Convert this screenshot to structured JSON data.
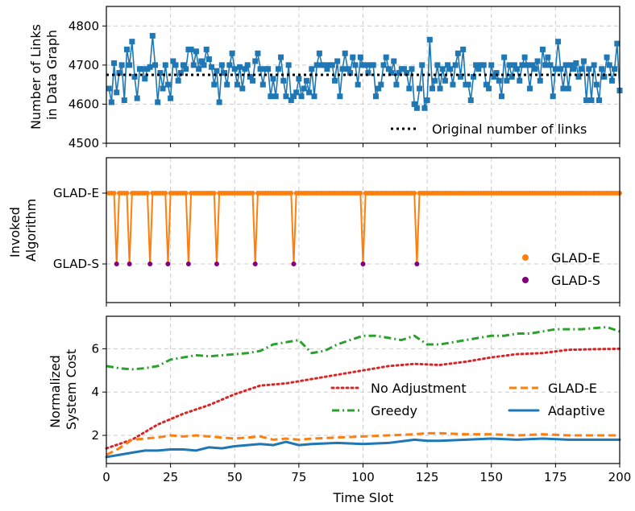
{
  "chart_data": [
    {
      "type": "line",
      "ylabel": "Number of Links\nin Data Graph",
      "xlim": [
        0,
        200
      ],
      "ylim": [
        4500,
        4850
      ],
      "yticks": [
        4500,
        4600,
        4700,
        4800
      ],
      "colors": {
        "series": "#1f77b4",
        "reference": "#000000"
      },
      "reference_line": {
        "label": "Original number of links",
        "value": 4675
      },
      "series": [
        {
          "name": "Number of links in data graph",
          "x": [
            1,
            2,
            3,
            4,
            5,
            6,
            7,
            8,
            9,
            10,
            11,
            12,
            13,
            14,
            15,
            16,
            17,
            18,
            19,
            20,
            21,
            22,
            23,
            24,
            25,
            26,
            27,
            28,
            29,
            30,
            31,
            32,
            33,
            34,
            35,
            36,
            37,
            38,
            39,
            40,
            41,
            42,
            43,
            44,
            45,
            46,
            47,
            48,
            49,
            50,
            51,
            52,
            53,
            54,
            55,
            56,
            57,
            58,
            59,
            60,
            61,
            62,
            63,
            64,
            65,
            66,
            67,
            68,
            69,
            70,
            71,
            72,
            73,
            74,
            75,
            76,
            77,
            78,
            79,
            80,
            81,
            82,
            83,
            84,
            85,
            86,
            87,
            88,
            89,
            90,
            91,
            92,
            93,
            94,
            95,
            96,
            97,
            98,
            99,
            100,
            101,
            102,
            103,
            104,
            105,
            106,
            107,
            108,
            109,
            110,
            111,
            112,
            113,
            114,
            115,
            116,
            117,
            118,
            119,
            120,
            121,
            122,
            123,
            124,
            125,
            126,
            127,
            128,
            129,
            130,
            131,
            132,
            133,
            134,
            135,
            136,
            137,
            138,
            139,
            140,
            141,
            142,
            143,
            144,
            145,
            146,
            147,
            148,
            149,
            150,
            151,
            152,
            153,
            154,
            155,
            156,
            157,
            158,
            159,
            160,
            161,
            162,
            163,
            164,
            165,
            166,
            167,
            168,
            169,
            170,
            171,
            172,
            173,
            174,
            175,
            176,
            177,
            178,
            179,
            180,
            181,
            182,
            183,
            184,
            185,
            186,
            187,
            188,
            189,
            190,
            191,
            192,
            193,
            194,
            195,
            196,
            197,
            198,
            199,
            200
          ],
          "y": [
            4640,
            4605,
            4705,
            4630,
            4680,
            4700,
            4610,
            4740,
            4700,
            4760,
            4670,
            4615,
            4690,
            4690,
            4665,
            4690,
            4695,
            4775,
            4700,
            4605,
            4680,
            4640,
            4700,
            4650,
            4615,
            4710,
            4700,
            4660,
            4680,
            4700,
            4690,
            4740,
            4740,
            4700,
            4735,
            4690,
            4710,
            4700,
            4740,
            4715,
            4695,
            4650,
            4685,
            4605,
            4700,
            4680,
            4650,
            4700,
            4730,
            4690,
            4650,
            4695,
            4640,
            4690,
            4700,
            4670,
            4660,
            4710,
            4730,
            4690,
            4650,
            4690,
            4690,
            4620,
            4665,
            4620,
            4690,
            4720,
            4660,
            4620,
            4700,
            4610,
            4620,
            4630,
            4665,
            4620,
            4640,
            4660,
            4630,
            4690,
            4620,
            4700,
            4730,
            4700,
            4700,
            4690,
            4700,
            4700,
            4660,
            4710,
            4620,
            4690,
            4730,
            4690,
            4680,
            4720,
            4700,
            4650,
            4720,
            4700,
            4700,
            4680,
            4700,
            4700,
            4620,
            4640,
            4650,
            4700,
            4720,
            4690,
            4680,
            4710,
            4650,
            4680,
            4690,
            4690,
            4680,
            4640,
            4690,
            4600,
            4590,
            4640,
            4700,
            4590,
            4610,
            4765,
            4640,
            4660,
            4700,
            4640,
            4690,
            4660,
            4700,
            4690,
            4650,
            4700,
            4730,
            4670,
            4740,
            4650,
            4650,
            4610,
            4670,
            4700,
            4690,
            4700,
            4700,
            4650,
            4640,
            4700,
            4670,
            4680,
            4660,
            4620,
            4720,
            4660,
            4700,
            4670,
            4700,
            4690,
            4660,
            4700,
            4720,
            4700,
            4640,
            4700,
            4690,
            4710,
            4660,
            4740,
            4700,
            4720,
            4700,
            4620,
            4690,
            4760,
            4690,
            4640,
            4700,
            4640,
            4700,
            4690,
            4705,
            4670,
            4690,
            4710,
            4610,
            4690,
            4610,
            4700,
            4650,
            4610,
            4690,
            4670,
            4720,
            4700,
            4660,
            4690,
            4755,
            4635
          ]
        }
      ]
    },
    {
      "type": "scatter",
      "ylabel": "Invoked\nAlgorithm",
      "xlim": [
        0,
        200
      ],
      "categories": [
        "GLAD-E",
        "GLAD-S"
      ],
      "colors": {
        "line": "#ff7f0e",
        "GLAD-E": "#ff7f0e",
        "GLAD-S": "#800080"
      },
      "legend": [
        {
          "name": "GLAD-E",
          "color": "#ff7f0e"
        },
        {
          "name": "GLAD-S",
          "color": "#800080"
        }
      ],
      "glad_s_slots": [
        4,
        9,
        17,
        24,
        32,
        43,
        58,
        73,
        100,
        121
      ],
      "default_category": "GLAD-E"
    },
    {
      "type": "line",
      "xlabel": "Time Slot",
      "ylabel": "Normalized\nSystem Cost",
      "xlim": [
        0,
        200
      ],
      "ylim": [
        0.7,
        7.5
      ],
      "xticks": [
        0,
        25,
        50,
        75,
        100,
        125,
        150,
        175,
        200
      ],
      "yticks": [
        2,
        4,
        6
      ],
      "series": [
        {
          "name": "No Adjustment",
          "color": "#d62728",
          "style": "dotted",
          "x": [
            0,
            10,
            20,
            30,
            40,
            50,
            60,
            70,
            80,
            90,
            100,
            110,
            120,
            130,
            140,
            150,
            160,
            170,
            180,
            190,
            200
          ],
          "y": [
            1.4,
            1.8,
            2.5,
            3.0,
            3.4,
            3.9,
            4.3,
            4.4,
            4.6,
            4.8,
            5.0,
            5.2,
            5.3,
            5.25,
            5.4,
            5.6,
            5.75,
            5.8,
            5.95,
            5.98,
            6.0
          ]
        },
        {
          "name": "GLAD-E",
          "color": "#ff7f0e",
          "style": "dashed",
          "x": [
            0,
            5,
            10,
            15,
            20,
            25,
            30,
            35,
            40,
            45,
            50,
            55,
            60,
            65,
            70,
            75,
            80,
            90,
            100,
            110,
            120,
            125,
            130,
            140,
            150,
            160,
            170,
            180,
            190,
            200
          ],
          "y": [
            1.1,
            1.4,
            1.8,
            1.85,
            1.9,
            2.0,
            1.95,
            2.0,
            1.95,
            1.9,
            1.85,
            1.9,
            1.95,
            1.8,
            1.85,
            1.8,
            1.85,
            1.9,
            1.95,
            2.0,
            2.05,
            2.1,
            2.1,
            2.05,
            2.05,
            2.0,
            2.05,
            2.0,
            2.0,
            2.0
          ]
        },
        {
          "name": "Greedy",
          "color": "#2ca02c",
          "style": "dashdot",
          "x": [
            0,
            5,
            10,
            15,
            20,
            25,
            30,
            35,
            40,
            45,
            50,
            55,
            60,
            65,
            70,
            75,
            80,
            85,
            90,
            95,
            100,
            105,
            110,
            115,
            120,
            125,
            130,
            135,
            140,
            145,
            150,
            155,
            160,
            165,
            170,
            175,
            180,
            185,
            190,
            195,
            200
          ],
          "y": [
            5.2,
            5.1,
            5.05,
            5.1,
            5.2,
            5.5,
            5.6,
            5.7,
            5.65,
            5.7,
            5.75,
            5.8,
            5.9,
            6.2,
            6.3,
            6.4,
            5.8,
            5.9,
            6.2,
            6.4,
            6.6,
            6.6,
            6.5,
            6.4,
            6.6,
            6.2,
            6.2,
            6.3,
            6.4,
            6.5,
            6.6,
            6.6,
            6.7,
            6.7,
            6.8,
            6.9,
            6.9,
            6.9,
            6.95,
            7.0,
            6.8
          ]
        },
        {
          "name": "Adaptive",
          "color": "#1f77b4",
          "style": "solid",
          "x": [
            0,
            5,
            10,
            15,
            20,
            25,
            30,
            35,
            40,
            45,
            50,
            55,
            60,
            65,
            70,
            75,
            80,
            90,
            100,
            110,
            120,
            125,
            130,
            140,
            150,
            160,
            170,
            180,
            190,
            200
          ],
          "y": [
            1.0,
            1.1,
            1.2,
            1.3,
            1.3,
            1.35,
            1.35,
            1.3,
            1.45,
            1.4,
            1.5,
            1.55,
            1.6,
            1.55,
            1.7,
            1.55,
            1.6,
            1.65,
            1.6,
            1.65,
            1.8,
            1.75,
            1.75,
            1.8,
            1.85,
            1.8,
            1.85,
            1.8,
            1.8,
            1.8
          ]
        }
      ],
      "legend": [
        "No Adjustment",
        "GLAD-E",
        "Greedy",
        "Adaptive"
      ]
    }
  ]
}
